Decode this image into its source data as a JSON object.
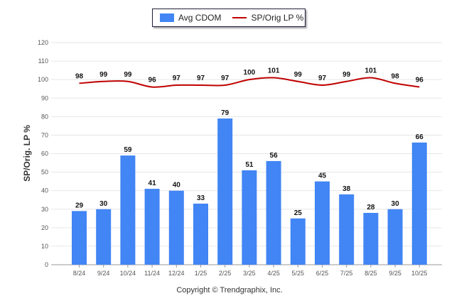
{
  "legend": {
    "bar_label": "Avg CDOM",
    "line_label": "SP/Orig LP %"
  },
  "axis": {
    "ylabel": "SP/Orig. LP %"
  },
  "footer": {
    "copyright": "Copyright © Trendgraphix, Inc."
  },
  "chart_data": {
    "type": "bar",
    "categories": [
      "8/24",
      "9/24",
      "10/24",
      "11/24",
      "12/24",
      "1/25",
      "2/25",
      "3/25",
      "4/25",
      "5/25",
      "6/25",
      "7/25",
      "8/25",
      "9/25",
      "10/25"
    ],
    "series": [
      {
        "name": "Avg CDOM",
        "type": "bar",
        "color": "#4285f4",
        "values": [
          29,
          30,
          59,
          41,
          40,
          33,
          79,
          51,
          56,
          25,
          45,
          38,
          28,
          30,
          66
        ]
      },
      {
        "name": "SP/Orig LP %",
        "type": "line",
        "color": "#c00000",
        "values": [
          98,
          99,
          99,
          96,
          97,
          97,
          97,
          100,
          101,
          99,
          97,
          99,
          101,
          98,
          96
        ]
      }
    ],
    "ylabel": "SP/Orig. LP %",
    "ylim": [
      0,
      120
    ],
    "yticks": [
      0,
      10,
      20,
      30,
      40,
      50,
      60,
      70,
      80,
      90,
      100,
      110,
      120
    ],
    "grid": true,
    "legend_position": "top-center"
  }
}
